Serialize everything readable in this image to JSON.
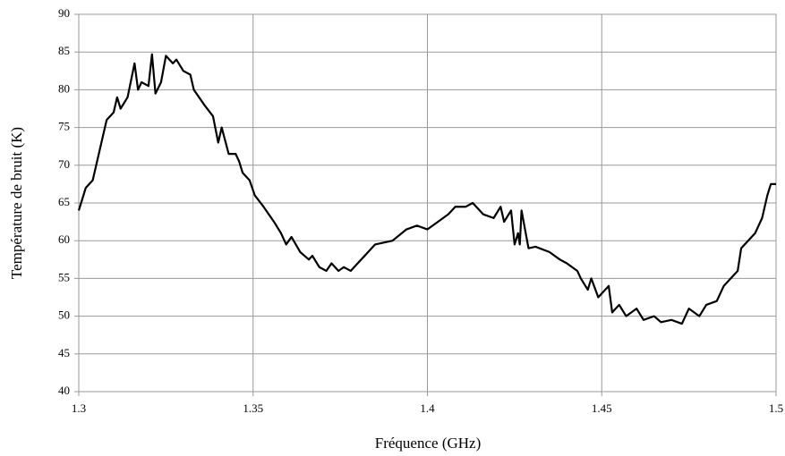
{
  "chart_data": {
    "type": "line",
    "x_label": "Fréquence (GHz)",
    "y_label": "Température de bruit  (K)",
    "xlim": [
      1.3,
      1.5
    ],
    "xticks": [
      1.3,
      1.35,
      1.4,
      1.45,
      1.5
    ],
    "ylim": [
      40,
      90
    ],
    "yticks": [
      40,
      45,
      50,
      55,
      60,
      65,
      70,
      75,
      80,
      85,
      90
    ],
    "grid": true,
    "series": [
      {
        "color": "#000000",
        "x": [
          1.3,
          1.302,
          1.304,
          1.306,
          1.308,
          1.31,
          1.311,
          1.312,
          1.314,
          1.316,
          1.317,
          1.318,
          1.32,
          1.321,
          1.322,
          1.3236,
          1.325,
          1.327,
          1.328,
          1.33,
          1.332,
          1.333,
          1.336,
          1.3385,
          1.34,
          1.341,
          1.343,
          1.345,
          1.346,
          1.347,
          1.349,
          1.3505,
          1.353,
          1.356,
          1.358,
          1.3595,
          1.361,
          1.3635,
          1.366,
          1.367,
          1.369,
          1.371,
          1.3725,
          1.3745,
          1.376,
          1.378,
          1.38,
          1.382,
          1.385,
          1.39,
          1.394,
          1.397,
          1.4,
          1.403,
          1.406,
          1.408,
          1.411,
          1.413,
          1.416,
          1.419,
          1.421,
          1.422,
          1.424,
          1.425,
          1.426,
          1.4265,
          1.427,
          1.429,
          1.431,
          1.435,
          1.438,
          1.44,
          1.443,
          1.444,
          1.446,
          1.447,
          1.449,
          1.451,
          1.452,
          1.453,
          1.455,
          1.457,
          1.46,
          1.462,
          1.465,
          1.467,
          1.47,
          1.473,
          1.475,
          1.478,
          1.48,
          1.483,
          1.485,
          1.487,
          1.489,
          1.49,
          1.492,
          1.494,
          1.496,
          1.4975,
          1.4985,
          1.5
        ],
        "values": [
          64,
          67,
          68,
          72,
          76,
          77,
          79,
          77.5,
          79,
          83.5,
          80,
          81,
          80.5,
          84.7,
          79.5,
          81,
          84.5,
          83.5,
          84,
          82.5,
          82,
          80,
          78,
          76.5,
          73,
          75,
          71.5,
          71.5,
          70.5,
          69,
          68,
          66,
          64.5,
          62.5,
          61,
          59.5,
          60.5,
          58.5,
          57.5,
          58,
          56.5,
          56,
          57,
          56,
          56.5,
          56,
          57,
          58,
          59.5,
          60,
          61.5,
          62,
          61.5,
          62.5,
          63.5,
          64.5,
          64.5,
          65,
          63.5,
          63,
          64.5,
          62.5,
          64,
          59.5,
          61,
          59.5,
          64,
          59,
          59.2,
          58.5,
          57.5,
          57,
          56,
          55,
          53.5,
          55,
          52.5,
          53.5,
          54,
          50.5,
          51.5,
          50,
          51,
          49.5,
          50,
          49.2,
          49.5,
          49,
          51,
          50,
          51.5,
          52,
          54,
          55,
          56,
          59,
          60,
          61,
          63,
          66,
          67.5,
          67.5
        ]
      }
    ]
  }
}
